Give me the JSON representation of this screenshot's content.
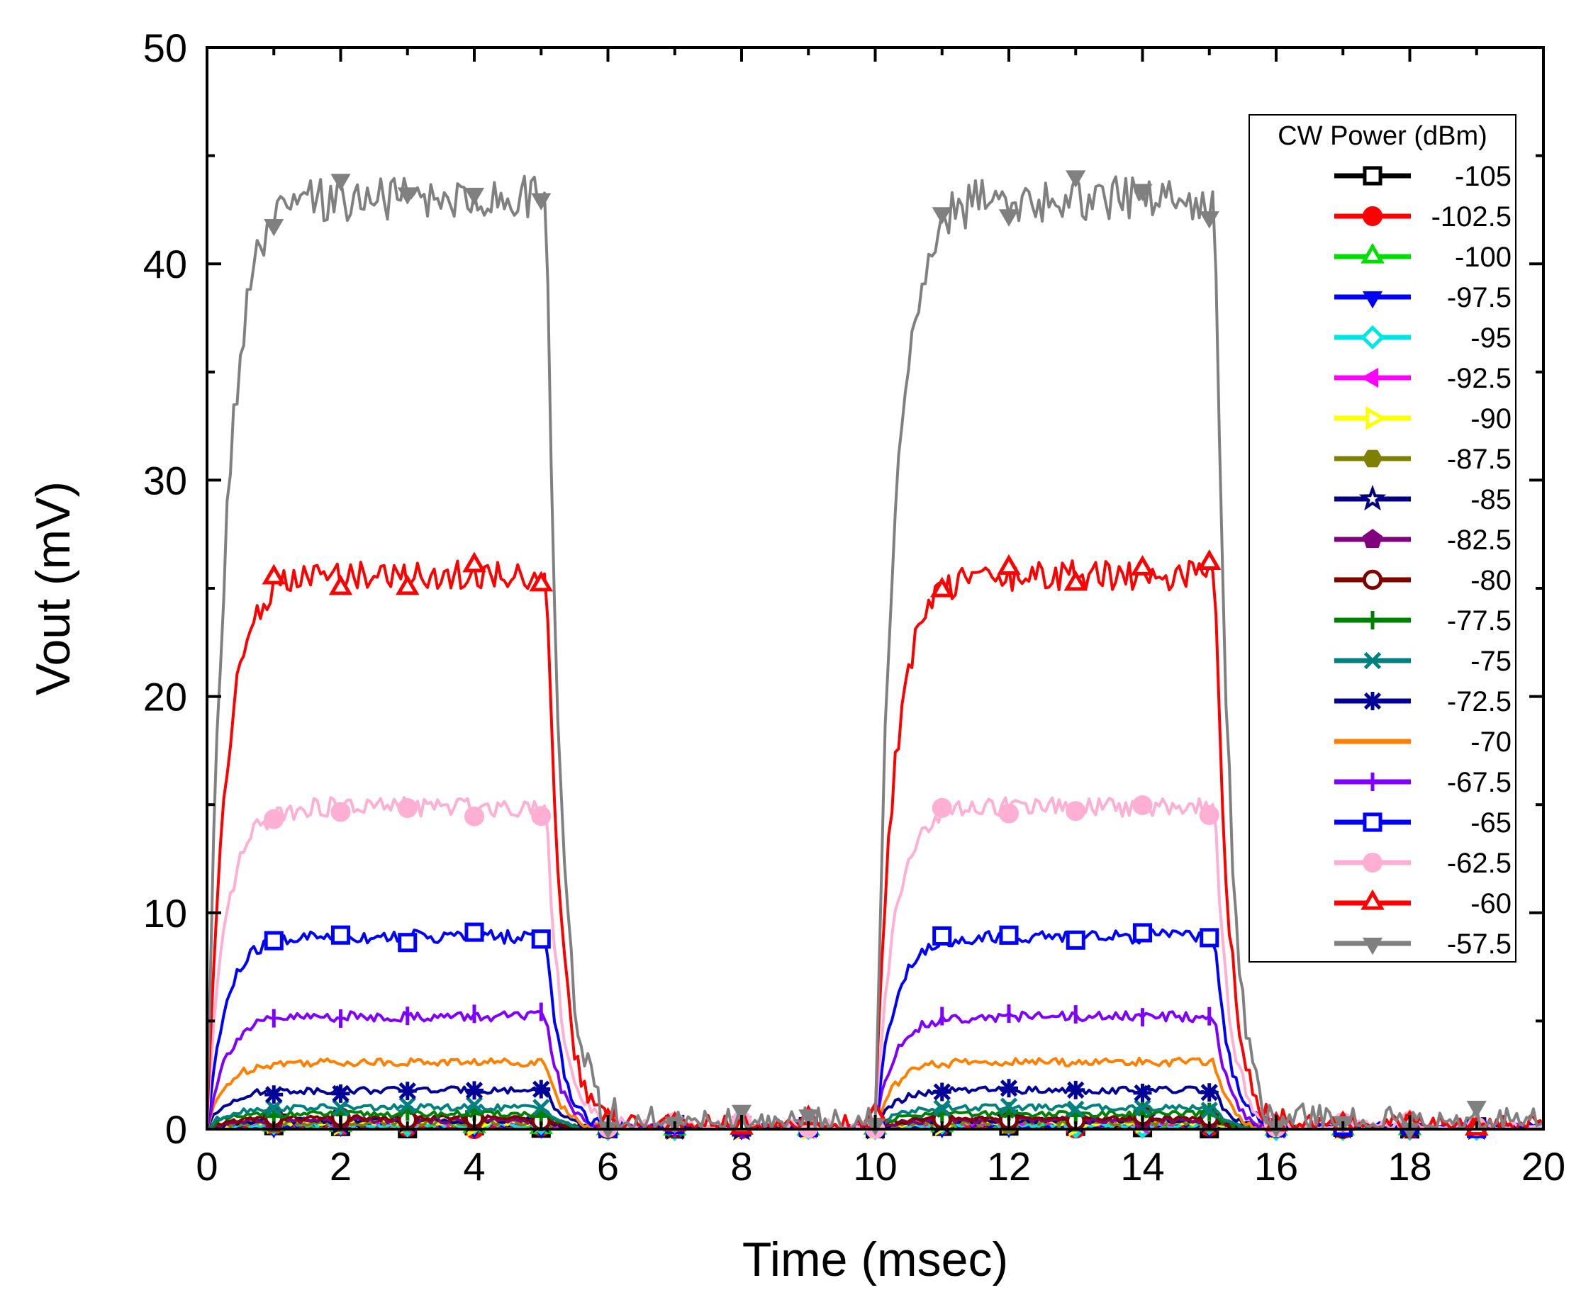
{
  "chart_data": {
    "type": "line",
    "xlabel": "Time (msec)",
    "ylabel": "Vout (mV)",
    "xlim": [
      0,
      20
    ],
    "ylim": [
      0,
      50
    ],
    "xticks": [
      0,
      2,
      4,
      6,
      8,
      10,
      12,
      14,
      16,
      18,
      20
    ],
    "yticks": [
      0,
      10,
      20,
      30,
      40,
      50
    ],
    "grid": false,
    "legend": {
      "title": "CW Power (dBm)",
      "position": "top-right"
    },
    "marker_x": [
      1,
      2,
      3,
      4,
      5,
      6,
      7,
      8,
      9,
      10,
      11,
      12,
      13,
      14,
      15,
      16,
      17,
      18,
      19
    ],
    "series": [
      {
        "name": "-105",
        "color": "#000000",
        "marker": "square-open",
        "plateau": 0.1
      },
      {
        "name": "-102.5",
        "color": "#ff0000",
        "marker": "circle-filled",
        "plateau": 0.1
      },
      {
        "name": "-100",
        "color": "#00dd00",
        "marker": "triangle-up-open",
        "plateau": 0.2
      },
      {
        "name": "-97.5",
        "color": "#0000ff",
        "marker": "triangle-down-filled",
        "plateau": 0.2
      },
      {
        "name": "-95",
        "color": "#00e5e5",
        "marker": "diamond-open",
        "plateau": 0.2
      },
      {
        "name": "-92.5",
        "color": "#ff00ff",
        "marker": "triangle-left-filled",
        "plateau": 0.3
      },
      {
        "name": "-90",
        "color": "#ffff00",
        "marker": "triangle-right-open",
        "plateau": 0.3
      },
      {
        "name": "-87.5",
        "color": "#808000",
        "marker": "hexagon-filled",
        "plateau": 0.3
      },
      {
        "name": "-85",
        "color": "#000080",
        "marker": "star-open",
        "plateau": 0.4
      },
      {
        "name": "-82.5",
        "color": "#800080",
        "marker": "pentagon-filled",
        "plateau": 0.4
      },
      {
        "name": "-80",
        "color": "#800000",
        "marker": "circle-dot",
        "plateau": 0.5
      },
      {
        "name": "-77.5",
        "color": "#008000",
        "marker": "plus",
        "plateau": 0.7
      },
      {
        "name": "-75",
        "color": "#008080",
        "marker": "x",
        "plateau": 1.0
      },
      {
        "name": "-72.5",
        "color": "#000099",
        "marker": "asterisk",
        "plateau": 1.8
      },
      {
        "name": "-70",
        "color": "#ff8000",
        "marker": "none",
        "plateau": 3.1
      },
      {
        "name": "-67.5",
        "color": "#8000ff",
        "marker": "vbar",
        "plateau": 5.2
      },
      {
        "name": "-65",
        "color": "#0000ff",
        "marker": "square-open",
        "plateau": 8.9
      },
      {
        "name": "-62.5",
        "color": "#ffafd4",
        "marker": "circle-filled",
        "plateau": 14.9
      },
      {
        "name": "-60",
        "color": "#ff0000",
        "marker": "triangle-up-open",
        "plateau": 25.6
      },
      {
        "name": "-57.5",
        "color": "#808080",
        "marker": "triangle-down-filled",
        "plateau": 43.0
      }
    ]
  }
}
